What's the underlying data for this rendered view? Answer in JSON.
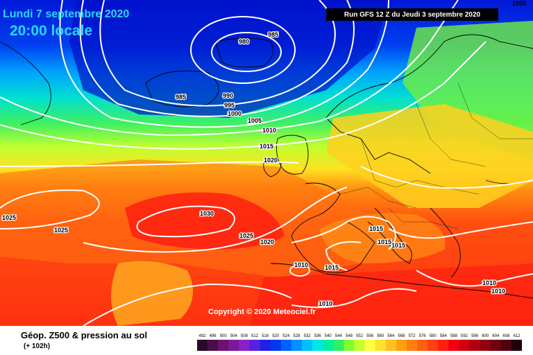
{
  "header": {
    "date": "Lundi 7 septembre 2020",
    "time": "20:00 locale",
    "run": "Run GFS 12 Z du Jeudi 3 septembre 2020",
    "corner_label": "1005"
  },
  "copyright": "Copyright © 2020 Meteociel.fr",
  "footer": {
    "title": "Géop. Z500 & pression au sol",
    "lead_time": "(+ 102h)"
  },
  "scale": {
    "labels": [
      "492",
      "496",
      "500",
      "504",
      "508",
      "512",
      "516",
      "520",
      "524",
      "528",
      "532",
      "536",
      "540",
      "544",
      "548",
      "552",
      "556",
      "560",
      "564",
      "568",
      "572",
      "576",
      "580",
      "584",
      "588",
      "592",
      "596",
      "600",
      "604",
      "608",
      "612"
    ],
    "colors": [
      "#2a0a2a",
      "#4a0f4a",
      "#6a1470",
      "#7a1a9a",
      "#8a20c8",
      "#5820e0",
      "#2020e8",
      "#0038f0",
      "#0060ff",
      "#0090ff",
      "#00c0ff",
      "#00e6e6",
      "#00f0a0",
      "#30f060",
      "#80ff30",
      "#c8ff30",
      "#ffff40",
      "#ffe030",
      "#ffc020",
      "#ffa010",
      "#ff8010",
      "#ff6010",
      "#ff4010",
      "#ff2010",
      "#f00010",
      "#d00010",
      "#b00010",
      "#900010",
      "#700010",
      "#500010",
      "#200010"
    ]
  },
  "isobars": [
    "985",
    "980",
    "985",
    "990",
    "995",
    "1000",
    "1005",
    "1010",
    "1015",
    "1020",
    "1030",
    "1025",
    "1025",
    "1025",
    "1020",
    "1015",
    "1015",
    "1015",
    "1010",
    "1015",
    "1010",
    "1010",
    "1010"
  ]
}
